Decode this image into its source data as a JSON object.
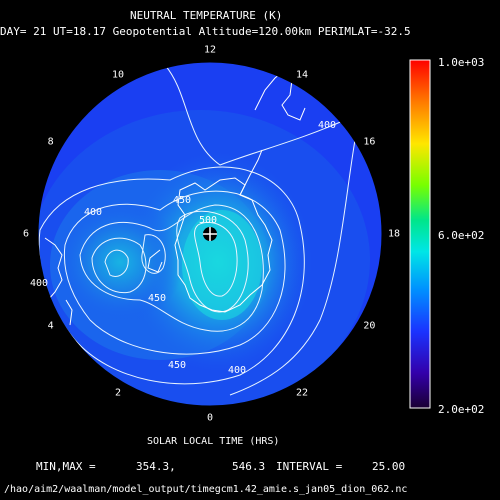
{
  "chart_data": {
    "type": "heatmap",
    "title": "NEUTRAL TEMPERATURE (K)",
    "subtitle": "DAY= 21 UT=18.17 Geopotential Altitude=120.00km PERIMLAT=-32.5",
    "xlabel": "SOLAR LOCAL TIME (HRS)",
    "projection": "polar",
    "local_time_ticks": [
      "12",
      "14",
      "16",
      "18",
      "20",
      "22",
      "0",
      "2",
      "4",
      "6",
      "8",
      "10"
    ],
    "colorbar": {
      "min": 200,
      "max": 1000,
      "tick_labels": [
        "1.0e+03",
        "6.0e+02",
        "2.0e+02"
      ],
      "tick_values": [
        1000,
        600,
        200
      ]
    },
    "contour_labels": [
      "400",
      "450",
      "500",
      "400",
      "450",
      "400",
      "450",
      "400"
    ],
    "stats": {
      "minmax_label": "MIN,MAX =",
      "min": "354.3,",
      "max": "546.3",
      "interval_label": "INTERVAL =",
      "interval": "25.00"
    },
    "footer": "/hao/aim2/waalman/model_output/timegcm1.42_amie.s_jan05_dion_062.nc"
  }
}
